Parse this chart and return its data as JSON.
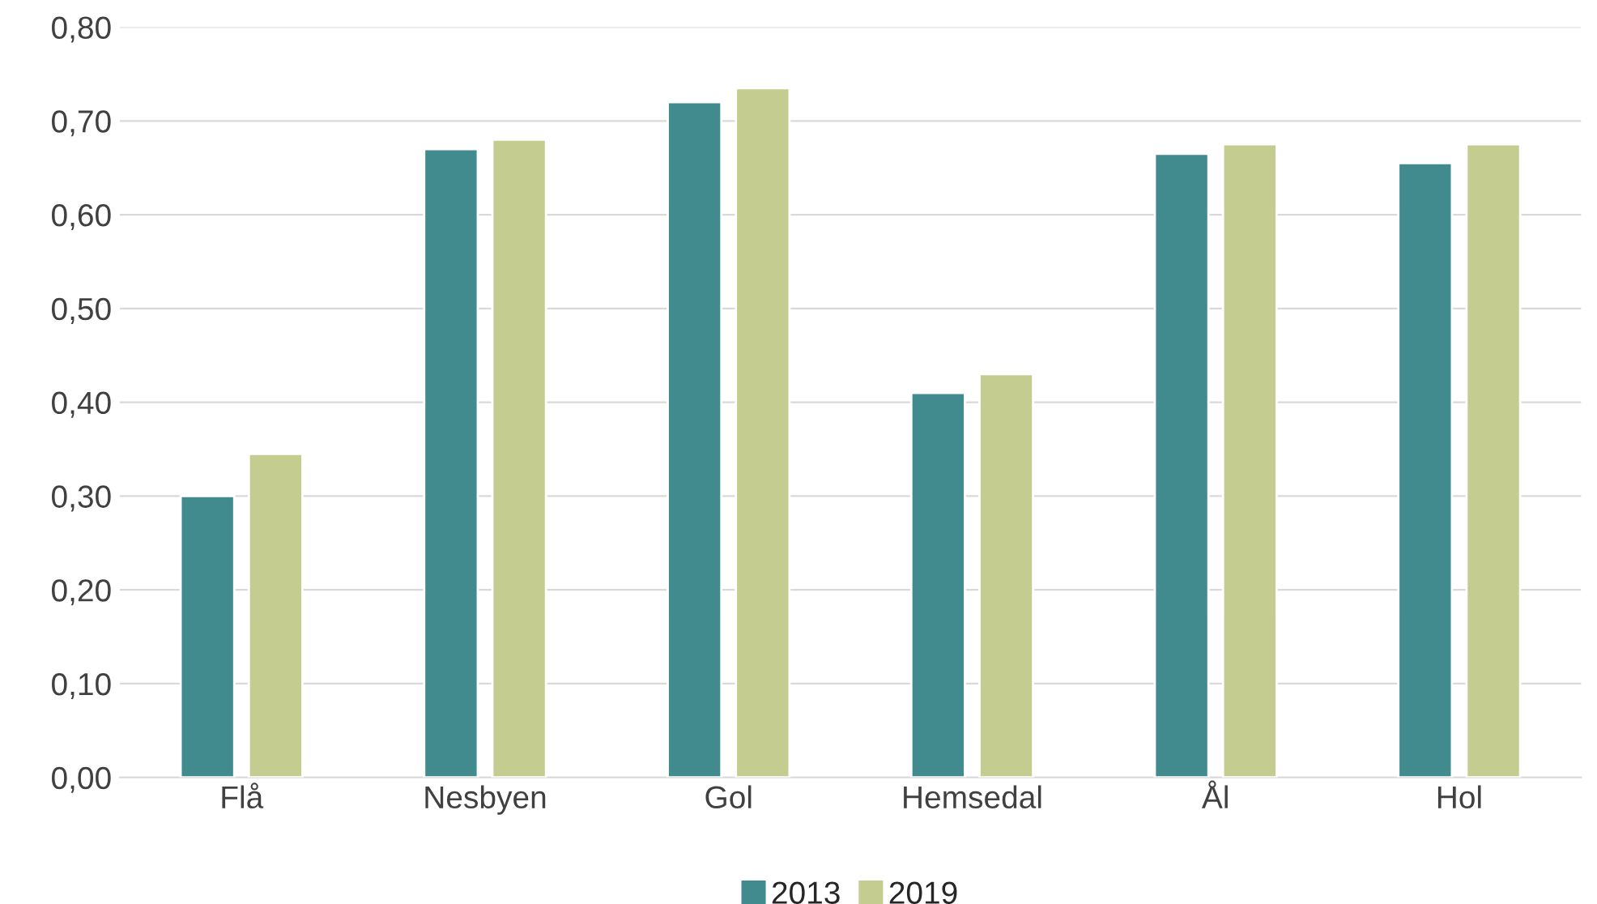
{
  "chart_data": {
    "type": "bar",
    "categories": [
      "Flå",
      "Nesbyen",
      "Gol",
      "Hemsedal",
      "Ål",
      "Hol"
    ],
    "series": [
      {
        "name": "2013",
        "color": "#418a8e",
        "values": [
          0.3,
          0.67,
          0.72,
          0.41,
          0.665,
          0.655
        ]
      },
      {
        "name": "2019",
        "color": "#c5cc8f",
        "values": [
          0.345,
          0.68,
          0.735,
          0.43,
          0.675,
          0.675
        ]
      }
    ],
    "ylim": [
      0,
      0.8
    ],
    "yticks": [
      {
        "value": 0,
        "label": "0,00"
      },
      {
        "value": 0.1,
        "label": "0,10"
      },
      {
        "value": 0.2,
        "label": "0,20"
      },
      {
        "value": 0.3,
        "label": "0,30"
      },
      {
        "value": 0.4,
        "label": "0,40"
      },
      {
        "value": 0.5,
        "label": "0,50"
      },
      {
        "value": 0.6,
        "label": "0,60"
      },
      {
        "value": 0.7,
        "label": "0,70"
      },
      {
        "value": 0.8,
        "label": "0,80"
      }
    ],
    "grid": "y",
    "legend": "bottom"
  }
}
